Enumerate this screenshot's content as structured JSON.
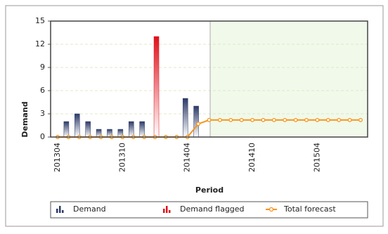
{
  "chart_data": {
    "type": "bar",
    "x_label": "Period",
    "y_label": "Demand",
    "categories": [
      "201304",
      null,
      null,
      null,
      null,
      null,
      "201310",
      null,
      null,
      null,
      null,
      null,
      "201404",
      null,
      null,
      null,
      null,
      null,
      "201410",
      null,
      null,
      null,
      null,
      null,
      "201504",
      null,
      null,
      null,
      null
    ],
    "series": [
      {
        "name": "Demand",
        "type": "bar",
        "color": "#2b3a67",
        "values": [
          0,
          2,
          3,
          2,
          1,
          1,
          1,
          2,
          2,
          null,
          0,
          0,
          5,
          4,
          null,
          null,
          null,
          null,
          null,
          null,
          null,
          null,
          null,
          null,
          null,
          null,
          null,
          null,
          null
        ]
      },
      {
        "name": "Demand flagged",
        "type": "bar",
        "color": "#e0101a",
        "values": [
          null,
          null,
          null,
          null,
          null,
          null,
          null,
          null,
          null,
          13,
          null,
          null,
          null,
          null,
          null,
          null,
          null,
          null,
          null,
          null,
          null,
          null,
          null,
          null,
          null,
          null,
          null,
          null,
          null
        ]
      },
      {
        "name": "Total forecast",
        "type": "line",
        "color": "#f7941d",
        "values": [
          0,
          0,
          0,
          0,
          0,
          0,
          0,
          0,
          0,
          0,
          0,
          0,
          0,
          1.7,
          2.2,
          2.2,
          2.2,
          2.2,
          2.2,
          2.2,
          2.2,
          2.2,
          2.2,
          2.2,
          2.2,
          2.2,
          2.2,
          2.2,
          2.2
        ]
      }
    ],
    "ylim": [
      0,
      15
    ],
    "yticks": [
      0,
      3,
      6,
      9,
      12,
      15
    ],
    "grid": true,
    "legend": "bottom"
  }
}
